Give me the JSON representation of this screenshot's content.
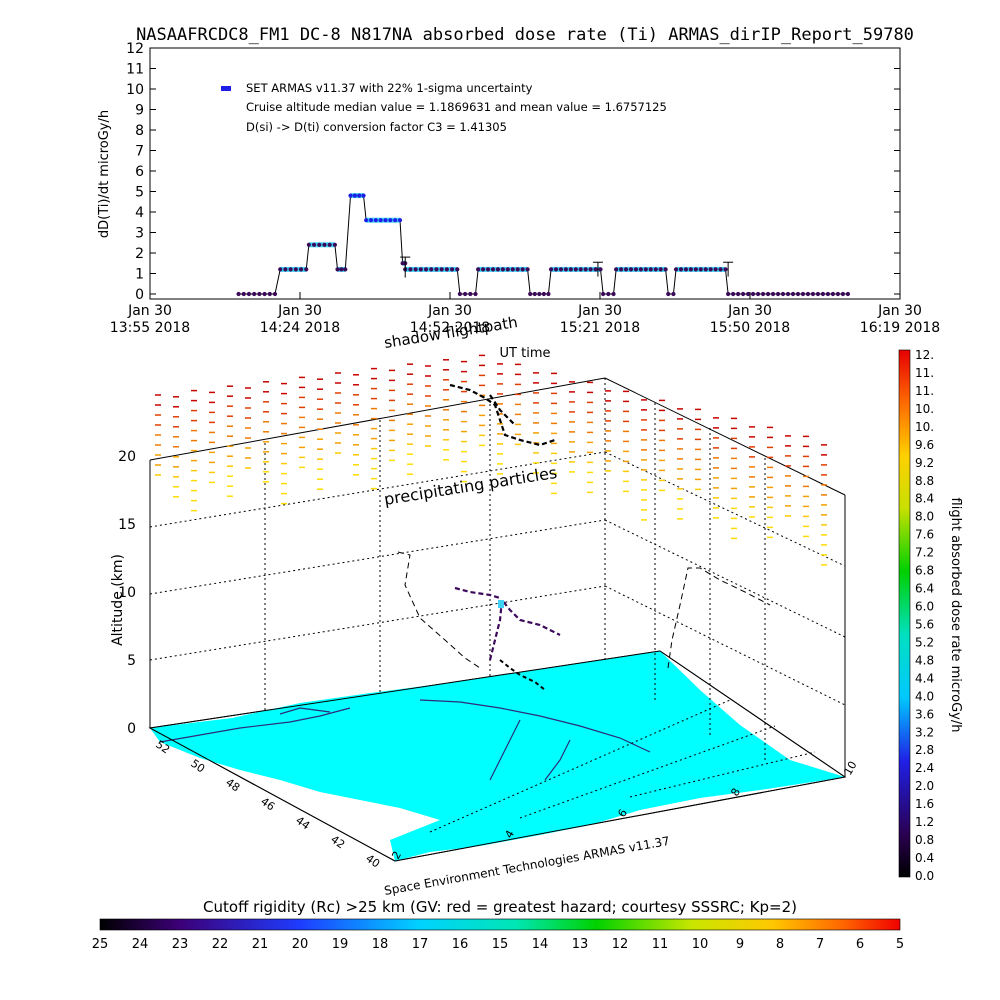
{
  "title": "NASAAFRCDC8_FM1 DC-8   N817NA absorbed dose rate (Ti) ARMAS_dirIP_Report_59780",
  "colors": {
    "series_main": "#1e1ee6",
    "series_points": "#3c0a5a",
    "error_band": "#3fd2f5",
    "map_land": "#00ffff",
    "map_water": "#ffffff"
  },
  "chart_data": [
    {
      "type": "line",
      "ylabel": "dD(Ti)/dt microGy/h",
      "xlabel": "UT time",
      "ylim": [
        0,
        12
      ],
      "xlim_minutes": [
        0,
        144
      ],
      "y_ticks": [
        "0",
        "1",
        "2",
        "3",
        "4",
        "5",
        "6",
        "7",
        "8",
        "9",
        "10",
        "11",
        "12"
      ],
      "x_ticks": [
        {
          "date": "Jan 30",
          "time": "13:55 2018"
        },
        {
          "date": "Jan 30",
          "time": "14:24 2018"
        },
        {
          "date": "Jan 30",
          "time": "14:52 2018"
        },
        {
          "date": "Jan 30",
          "time": "15:21 2018"
        },
        {
          "date": "Jan 30",
          "time": "15:50 2018"
        },
        {
          "date": "Jan 30",
          "time": "16:19 2018"
        }
      ],
      "legend": {
        "series_name": "SET ARMAS v11.37 with 22% 1-sigma uncertainty",
        "note1": "Cruise altitude median value = 1.1869631 and mean value = 1.6757125",
        "note2": "D(si) -> D(ti) conversion factor C3 = 1.41305"
      },
      "segments": [
        {
          "start": 17.0,
          "end": 24.0,
          "value": 0.0
        },
        {
          "start": 25.0,
          "end": 30.0,
          "value": 1.2
        },
        {
          "start": 30.5,
          "end": 35.5,
          "value": 2.4
        },
        {
          "start": 36.0,
          "end": 37.5,
          "value": 1.2
        },
        {
          "start": 38.5,
          "end": 41.0,
          "value": 4.8
        },
        {
          "start": 41.5,
          "end": 48.0,
          "value": 3.6
        },
        {
          "start": 48.5,
          "end": 49.0,
          "value": 1.5
        },
        {
          "start": 49.0,
          "end": 59.0,
          "value": 1.2
        },
        {
          "start": 59.5,
          "end": 62.5,
          "value": 0.0
        },
        {
          "start": 63.0,
          "end": 72.5,
          "value": 1.2
        },
        {
          "start": 73.0,
          "end": 76.5,
          "value": 0.0
        },
        {
          "start": 77.0,
          "end": 86.5,
          "value": 1.2
        },
        {
          "start": 87.0,
          "end": 89.0,
          "value": 0.0
        },
        {
          "start": 89.5,
          "end": 99.0,
          "value": 1.2
        },
        {
          "start": 99.5,
          "end": 100.5,
          "value": 0.0
        },
        {
          "start": 101.0,
          "end": 110.5,
          "value": 1.2
        },
        {
          "start": 111.0,
          "end": 134.0,
          "value": 0.0
        }
      ]
    },
    {
      "type": "scatter",
      "ylabel": "Altitude (km)",
      "z_ticks": [
        "0",
        "5",
        "10",
        "15",
        "20"
      ],
      "lat_ticks": [
        "40",
        "42",
        "44",
        "46",
        "48",
        "50",
        "52"
      ],
      "lon_ticks": [
        "2",
        "4",
        "6",
        "8",
        "10"
      ],
      "annotations": {
        "shadow": "shadow flightpath",
        "precip": "precipitating particles",
        "credit": "Space Environment Technologies ARMAS v11.37"
      }
    }
  ],
  "right_colorbar": {
    "label": "flight absorbed dose rate microGy/h",
    "ticks": [
      "0.0",
      "0.4",
      "0.8",
      "1.2",
      "1.6",
      "2.0",
      "2.4",
      "2.8",
      "3.2",
      "3.6",
      "4.0",
      "4.4",
      "4.8",
      "5.2",
      "5.6",
      "6.0",
      "6.4",
      "6.8",
      "7.2",
      "7.6",
      "8.0",
      "8.4",
      "8.8",
      "9.2",
      "9.6",
      "10.",
      "10.",
      "11.",
      "11.",
      "12."
    ]
  },
  "bottom_colorbar": {
    "label": "Cutoff rigidity (Rc) >25 km (GV: red = greatest hazard; courtesy SSSRC; Kp=2)",
    "ticks": [
      "25",
      "24",
      "23",
      "22",
      "21",
      "20",
      "19",
      "18",
      "17",
      "16",
      "15",
      "14",
      "13",
      "12",
      "11",
      "10",
      "9",
      "8",
      "7",
      "6",
      "5"
    ]
  }
}
